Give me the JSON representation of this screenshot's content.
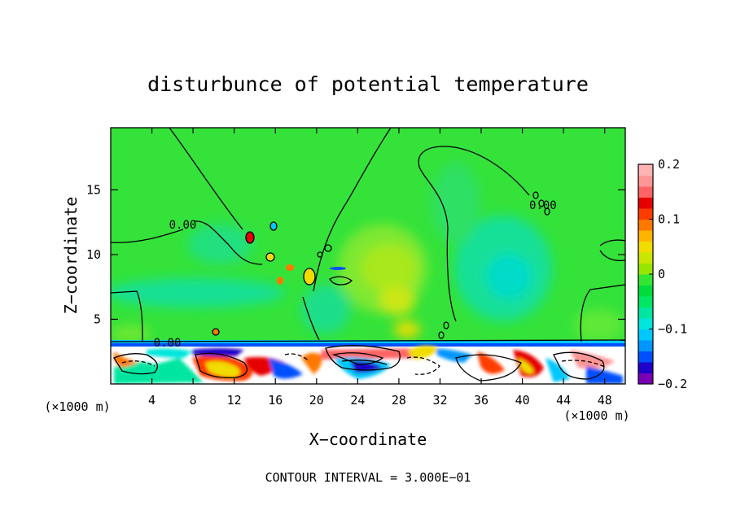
{
  "chart_data": {
    "type": "heatmap",
    "title": "disturbunce of potential temperature",
    "xlabel": "X−coordinate",
    "ylabel": "Z−coordinate",
    "x_unit_left": "(×1000 m)",
    "x_unit_right": "(×1000 m)",
    "footer": "CONTOUR INTERVAL = 3.000E−01",
    "xlim": [
      0,
      50
    ],
    "ylim": [
      0,
      19.8
    ],
    "x_ticks": [
      4,
      8,
      12,
      16,
      20,
      24,
      28,
      32,
      36,
      40,
      44,
      48
    ],
    "x_tick_labels": [
      "4",
      "8",
      "12",
      "16",
      "20",
      "24",
      "28",
      "32",
      "36",
      "40",
      "44",
      "48"
    ],
    "y_ticks": [
      5,
      10,
      15
    ],
    "y_tick_labels": [
      "5",
      "10",
      "15"
    ],
    "contour_labels": [
      {
        "text": "0.00",
        "x": 7.0,
        "y": 12.0
      },
      {
        "text": "0.00",
        "x": 42.0,
        "y": 13.5
      },
      {
        "text": "0.00",
        "x": 5.5,
        "y": 2.9
      }
    ],
    "colorbar": {
      "min": -0.2,
      "max": 0.2,
      "tick_values": [
        0.2,
        0.1,
        0,
        -0.1,
        -0.2
      ],
      "tick_labels": [
        "0.2",
        "0.1",
        "0",
        "−0.1",
        "−0.2"
      ],
      "colors": [
        "#7a00b4",
        "#1e00c8",
        "#0050ff",
        "#0096ff",
        "#00c8ff",
        "#00e6dc",
        "#00e6a0",
        "#00e664",
        "#00dc3c",
        "#32e632",
        "#96e600",
        "#c8e600",
        "#f0dc00",
        "#ffb400",
        "#ff7800",
        "#ff3c00",
        "#e60000",
        "#ff6464",
        "#ff9696",
        "#ffb4b4"
      ]
    }
  }
}
